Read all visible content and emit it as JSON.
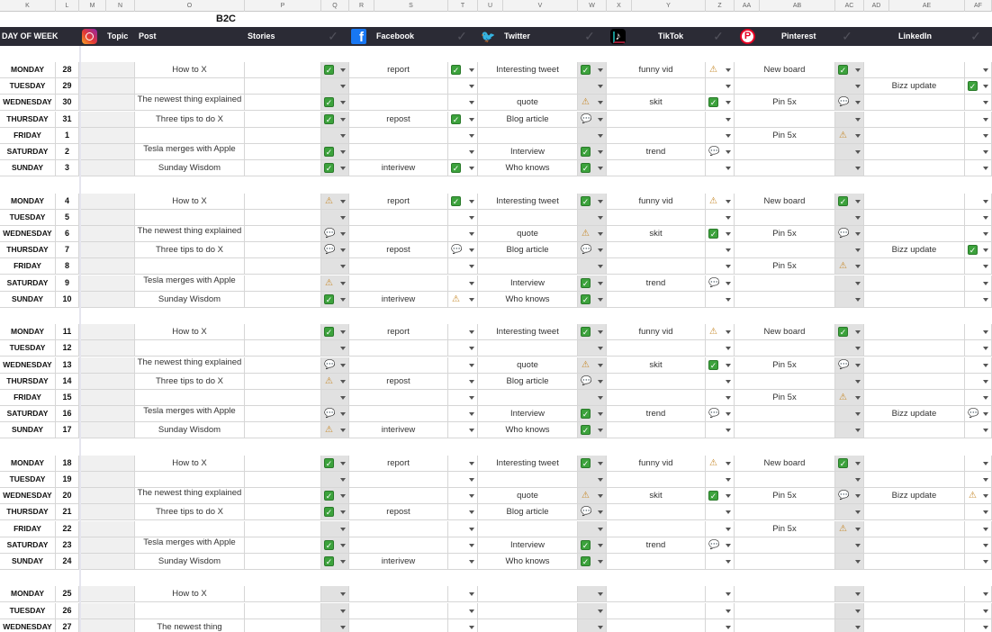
{
  "sheet": {
    "columns": [
      "K",
      "L",
      "M",
      "N",
      "O",
      "P",
      "Q",
      "R",
      "S",
      "T",
      "U",
      "V",
      "W",
      "X",
      "Y",
      "Z",
      "AA",
      "AB",
      "AC",
      "AD",
      "AE",
      "AF"
    ],
    "section_title": "B2C"
  },
  "header": {
    "day_of_week": "DAY OF WEEK",
    "instagram": {
      "icon": "instagram-icon",
      "topic": "Topic",
      "post": "Post",
      "stories": "Stories"
    },
    "facebook": {
      "icon": "facebook-icon",
      "label": "Facebook"
    },
    "twitter": {
      "icon": "twitter-icon",
      "label": "Twitter"
    },
    "tiktok": {
      "icon": "tiktok-icon",
      "label": "TikTok"
    },
    "pinterest": {
      "icon": "pinterest-icon",
      "label": "Pinterest"
    },
    "linkedin": {
      "label": "LinkedIn"
    },
    "check_glyph": "✓"
  },
  "status_glyphs": {
    "done": "✓",
    "wip": "⚠",
    "idea": "💬"
  },
  "colors": {
    "header_bar": "#2b2b35",
    "done": "#3ca23c",
    "dropdown_shade": "#e1e1e1"
  },
  "rows": [
    {
      "day": "MONDAY",
      "num": "28",
      "post": "How to X",
      "post_s": "done",
      "fb": "report",
      "fb_s": "done",
      "tw": "Interesting tweet",
      "tw_s": "done",
      "tt": "funny vid",
      "tt_s": "wip",
      "pi": "New board",
      "pi_s": "done",
      "li": "",
      "li_s": ""
    },
    {
      "day": "TUESDAY",
      "num": "29",
      "post": "",
      "post_s": "",
      "fb": "",
      "fb_s": "",
      "tw": "",
      "tw_s": "",
      "tt": "",
      "tt_s": "",
      "pi": "",
      "pi_s": "",
      "li": "Bizz update",
      "li_s": "done"
    },
    {
      "day": "WEDNESDAY",
      "num": "30",
      "post": "The newest thing explained",
      "post_s": "done",
      "fb": "",
      "fb_s": "",
      "tw": "quote",
      "tw_s": "wip",
      "tt": "skit",
      "tt_s": "done",
      "pi": "Pin 5x",
      "pi_s": "idea",
      "li": "",
      "li_s": ""
    },
    {
      "day": "THURSDAY",
      "num": "31",
      "post": "Three tips to do X",
      "post_s": "done",
      "fb": "repost",
      "fb_s": "done",
      "tw": "Blog article",
      "tw_s": "idea",
      "tt": "",
      "tt_s": "",
      "pi": "",
      "pi_s": "",
      "li": "",
      "li_s": ""
    },
    {
      "day": "FRIDAY",
      "num": "1",
      "post": "",
      "post_s": "",
      "fb": "",
      "fb_s": "",
      "tw": "",
      "tw_s": "",
      "tt": "",
      "tt_s": "",
      "pi": "Pin 5x",
      "pi_s": "wip",
      "li": "",
      "li_s": ""
    },
    {
      "day": "SATURDAY",
      "num": "2",
      "post": "Tesla merges with Apple",
      "post_s": "done",
      "fb": "",
      "fb_s": "",
      "tw": "Interview",
      "tw_s": "done",
      "tt": "trend",
      "tt_s": "idea",
      "pi": "",
      "pi_s": "",
      "li": "",
      "li_s": ""
    },
    {
      "day": "SUNDAY",
      "num": "3",
      "post": "Sunday Wisdom",
      "post_s": "done",
      "fb": "interivew",
      "fb_s": "done",
      "tw": "Who knows",
      "tw_s": "done",
      "tt": "",
      "tt_s": "",
      "pi": "",
      "pi_s": "",
      "li": "",
      "li_s": ""
    },
    {
      "spacer": true
    },
    {
      "day": "MONDAY",
      "num": "4",
      "post": "How to X",
      "post_s": "wip",
      "fb": "report",
      "fb_s": "done",
      "tw": "Interesting tweet",
      "tw_s": "done",
      "tt": "funny vid",
      "tt_s": "wip",
      "pi": "New board",
      "pi_s": "done",
      "li": "",
      "li_s": ""
    },
    {
      "day": "TUESDAY",
      "num": "5",
      "post": "",
      "post_s": "",
      "fb": "",
      "fb_s": "",
      "tw": "",
      "tw_s": "",
      "tt": "",
      "tt_s": "",
      "pi": "",
      "pi_s": "",
      "li": "",
      "li_s": ""
    },
    {
      "day": "WEDNESDAY",
      "num": "6",
      "post": "The newest thing explained",
      "post_s": "idea",
      "fb": "",
      "fb_s": "",
      "tw": "quote",
      "tw_s": "wip",
      "tt": "skit",
      "tt_s": "done",
      "pi": "Pin 5x",
      "pi_s": "idea",
      "li": "",
      "li_s": ""
    },
    {
      "day": "THURSDAY",
      "num": "7",
      "post": "Three tips to do X",
      "post_s": "idea",
      "fb": "repost",
      "fb_s": "idea",
      "tw": "Blog article",
      "tw_s": "idea",
      "tt": "",
      "tt_s": "",
      "pi": "",
      "pi_s": "",
      "li": "Bizz update",
      "li_s": "done"
    },
    {
      "day": "FRIDAY",
      "num": "8",
      "post": "",
      "post_s": "",
      "fb": "",
      "fb_s": "",
      "tw": "",
      "tw_s": "",
      "tt": "",
      "tt_s": "",
      "pi": "Pin 5x",
      "pi_s": "wip",
      "li": "",
      "li_s": ""
    },
    {
      "day": "SATURDAY",
      "num": "9",
      "post": "Tesla merges with Apple",
      "post_s": "wip",
      "fb": "",
      "fb_s": "",
      "tw": "Interview",
      "tw_s": "done",
      "tt": "trend",
      "tt_s": "idea",
      "pi": "",
      "pi_s": "",
      "li": "",
      "li_s": ""
    },
    {
      "day": "SUNDAY",
      "num": "10",
      "post": "Sunday Wisdom",
      "post_s": "done",
      "fb": "interivew",
      "fb_s": "wip",
      "tw": "Who knows",
      "tw_s": "done",
      "tt": "",
      "tt_s": "",
      "pi": "",
      "pi_s": "",
      "li": "",
      "li_s": ""
    },
    {
      "spacer": true
    },
    {
      "day": "MONDAY",
      "num": "11",
      "post": "How to X",
      "post_s": "done",
      "fb": "report",
      "fb_s": "",
      "tw": "Interesting tweet",
      "tw_s": "done",
      "tt": "funny vid",
      "tt_s": "wip",
      "pi": "New board",
      "pi_s": "done",
      "li": "",
      "li_s": ""
    },
    {
      "day": "TUESDAY",
      "num": "12",
      "post": "",
      "post_s": "",
      "fb": "",
      "fb_s": "",
      "tw": "",
      "tw_s": "",
      "tt": "",
      "tt_s": "",
      "pi": "",
      "pi_s": "",
      "li": "",
      "li_s": ""
    },
    {
      "day": "WEDNESDAY",
      "num": "13",
      "post": "The newest thing explained",
      "post_s": "idea",
      "fb": "",
      "fb_s": "",
      "tw": "quote",
      "tw_s": "wip",
      "tt": "skit",
      "tt_s": "done",
      "pi": "Pin 5x",
      "pi_s": "idea",
      "li": "",
      "li_s": ""
    },
    {
      "day": "THURSDAY",
      "num": "14",
      "post": "Three tips to do X",
      "post_s": "wip",
      "fb": "repost",
      "fb_s": "",
      "tw": "Blog article",
      "tw_s": "idea",
      "tt": "",
      "tt_s": "",
      "pi": "",
      "pi_s": "",
      "li": "",
      "li_s": ""
    },
    {
      "day": "FRIDAY",
      "num": "15",
      "post": "",
      "post_s": "",
      "fb": "",
      "fb_s": "",
      "tw": "",
      "tw_s": "",
      "tt": "",
      "tt_s": "",
      "pi": "Pin 5x",
      "pi_s": "wip",
      "li": "",
      "li_s": ""
    },
    {
      "day": "SATURDAY",
      "num": "16",
      "post": "Tesla merges with Apple",
      "post_s": "idea",
      "fb": "",
      "fb_s": "",
      "tw": "Interview",
      "tw_s": "done",
      "tt": "trend",
      "tt_s": "idea",
      "pi": "",
      "pi_s": "",
      "li": "Bizz update",
      "li_s": "idea"
    },
    {
      "day": "SUNDAY",
      "num": "17",
      "post": "Sunday Wisdom",
      "post_s": "wip",
      "fb": "interivew",
      "fb_s": "",
      "tw": "Who knows",
      "tw_s": "done",
      "tt": "",
      "tt_s": "",
      "pi": "",
      "pi_s": "",
      "li": "",
      "li_s": ""
    },
    {
      "spacer": true
    },
    {
      "day": "MONDAY",
      "num": "18",
      "post": "How to X",
      "post_s": "done",
      "fb": "report",
      "fb_s": "",
      "tw": "Interesting tweet",
      "tw_s": "done",
      "tt": "funny vid",
      "tt_s": "wip",
      "pi": "New board",
      "pi_s": "done",
      "li": "",
      "li_s": ""
    },
    {
      "day": "TUESDAY",
      "num": "19",
      "post": "",
      "post_s": "",
      "fb": "",
      "fb_s": "",
      "tw": "",
      "tw_s": "",
      "tt": "",
      "tt_s": "",
      "pi": "",
      "pi_s": "",
      "li": "",
      "li_s": ""
    },
    {
      "day": "WEDNESDAY",
      "num": "20",
      "post": "The newest thing explained",
      "post_s": "done",
      "fb": "",
      "fb_s": "",
      "tw": "quote",
      "tw_s": "wip",
      "tt": "skit",
      "tt_s": "done",
      "pi": "Pin 5x",
      "pi_s": "idea",
      "li": "Bizz update",
      "li_s": "wip"
    },
    {
      "day": "THURSDAY",
      "num": "21",
      "post": "Three tips to do X",
      "post_s": "done",
      "fb": "repost",
      "fb_s": "",
      "tw": "Blog article",
      "tw_s": "idea",
      "tt": "",
      "tt_s": "",
      "pi": "",
      "pi_s": "",
      "li": "",
      "li_s": ""
    },
    {
      "day": "FRIDAY",
      "num": "22",
      "post": "",
      "post_s": "",
      "fb": "",
      "fb_s": "",
      "tw": "",
      "tw_s": "",
      "tt": "",
      "tt_s": "",
      "pi": "Pin 5x",
      "pi_s": "wip",
      "li": "",
      "li_s": ""
    },
    {
      "day": "SATURDAY",
      "num": "23",
      "post": "Tesla merges with Apple",
      "post_s": "done",
      "fb": "",
      "fb_s": "",
      "tw": "Interview",
      "tw_s": "done",
      "tt": "trend",
      "tt_s": "idea",
      "pi": "",
      "pi_s": "",
      "li": "",
      "li_s": ""
    },
    {
      "day": "SUNDAY",
      "num": "24",
      "post": "Sunday Wisdom",
      "post_s": "done",
      "fb": "interivew",
      "fb_s": "",
      "tw": "Who knows",
      "tw_s": "done",
      "tt": "",
      "tt_s": "",
      "pi": "",
      "pi_s": "",
      "li": "",
      "li_s": ""
    },
    {
      "spacer": true
    },
    {
      "day": "MONDAY",
      "num": "25",
      "post": "How to X",
      "post_s": "",
      "fb": "",
      "fb_s": "",
      "tw": "",
      "tw_s": "",
      "tt": "",
      "tt_s": "",
      "pi": "",
      "pi_s": "",
      "li": "",
      "li_s": ""
    },
    {
      "day": "TUESDAY",
      "num": "26",
      "post": "",
      "post_s": "",
      "fb": "",
      "fb_s": "",
      "tw": "",
      "tw_s": "",
      "tt": "",
      "tt_s": "",
      "pi": "",
      "pi_s": "",
      "li": "",
      "li_s": ""
    },
    {
      "day": "WEDNESDAY",
      "num": "27",
      "post": "The newest thing",
      "post_s": "",
      "fb": "",
      "fb_s": "",
      "tw": "",
      "tw_s": "",
      "tt": "",
      "tt_s": "",
      "pi": "",
      "pi_s": "",
      "li": "",
      "li_s": ""
    }
  ]
}
